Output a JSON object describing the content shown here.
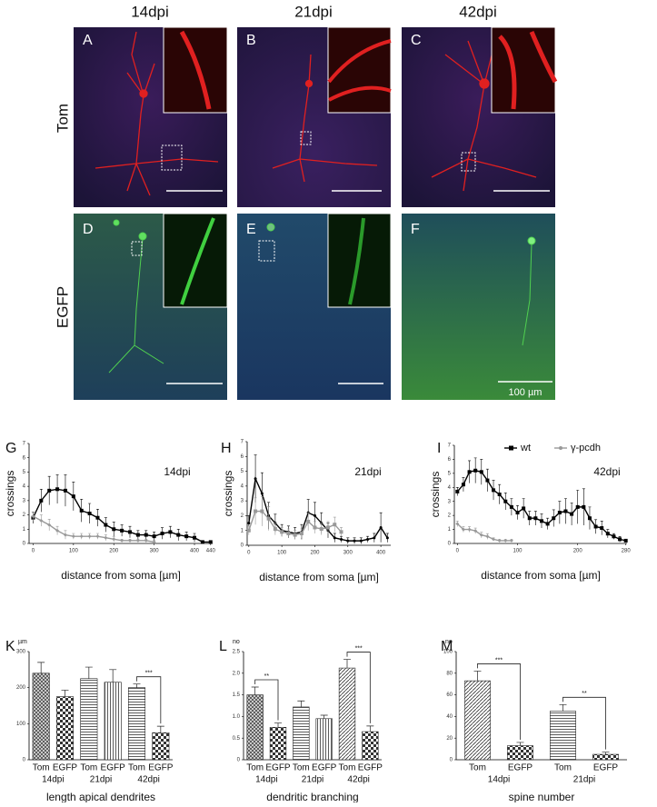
{
  "panels": {
    "columns": [
      "14dpi",
      "21dpi",
      "42dpi"
    ],
    "rows": [
      "Tom",
      "EGFP"
    ],
    "letters": [
      "A",
      "B",
      "C",
      "D",
      "E",
      "F"
    ],
    "scale_label": "100 µm"
  },
  "chart_data": [
    {
      "type": "line",
      "letter": "G",
      "annotation": "14dpi",
      "xlabel": "distance from soma [µm]",
      "ylabel": "crossings",
      "xlim": [
        -10,
        445
      ],
      "xticks": [
        0,
        100,
        200,
        300,
        400,
        440
      ],
      "ylim": [
        0,
        7
      ],
      "yticks": [
        0,
        1,
        2,
        3,
        4,
        5,
        6,
        7
      ],
      "series": [
        {
          "color": "#000000",
          "marker": "square",
          "x": [
            0,
            20,
            40,
            60,
            80,
            100,
            120,
            140,
            160,
            180,
            200,
            220,
            240,
            260,
            280,
            300,
            320,
            340,
            360,
            380,
            400,
            420,
            440
          ],
          "values": [
            1.8,
            3.0,
            3.7,
            3.8,
            3.7,
            3.3,
            2.3,
            2.1,
            1.8,
            1.3,
            1.0,
            0.9,
            0.8,
            0.6,
            0.6,
            0.5,
            0.7,
            0.8,
            0.6,
            0.5,
            0.4,
            0.1,
            0.1
          ],
          "errors": [
            0.4,
            0.8,
            1.0,
            1.0,
            1.1,
            1.0,
            0.8,
            0.7,
            0.6,
            0.5,
            0.5,
            0.4,
            0.4,
            0.3,
            0.3,
            0.3,
            0.4,
            0.4,
            0.4,
            0.3,
            0.3,
            0.1,
            0.1
          ]
        },
        {
          "color": "#999999",
          "marker": "diamond",
          "x": [
            0,
            20,
            40,
            60,
            80,
            100,
            120,
            140,
            160,
            180,
            200,
            220,
            240,
            260,
            280,
            300
          ],
          "values": [
            1.9,
            1.6,
            1.3,
            0.9,
            0.6,
            0.5,
            0.5,
            0.5,
            0.5,
            0.4,
            0.3,
            0.2,
            0.2,
            0.2,
            0.2,
            0.1
          ],
          "errors": [
            0.3,
            0.4,
            0.4,
            0.3,
            0.3,
            0.2,
            0.2,
            0.2,
            0.2,
            0.2,
            0.2,
            0.1,
            0.1,
            0.1,
            0.1,
            0.1
          ]
        }
      ]
    },
    {
      "type": "line",
      "letter": "H",
      "annotation": "21dpi",
      "xlabel": "distance from soma [µm]",
      "ylabel": "crossings",
      "xlim": [
        -5,
        430
      ],
      "xticks": [
        0,
        100,
        200,
        300,
        400
      ],
      "ylim": [
        0,
        7
      ],
      "yticks": [
        0,
        1,
        2,
        3,
        4,
        5,
        6,
        7
      ],
      "series": [
        {
          "color": "#000000",
          "marker": "dot",
          "x": [
            0,
            20,
            40,
            60,
            80,
            100,
            120,
            140,
            160,
            180,
            200,
            220,
            240,
            260,
            280,
            300,
            320,
            340,
            360,
            380,
            400,
            420
          ],
          "values": [
            1.5,
            4.5,
            3.5,
            2.0,
            1.5,
            1.0,
            0.9,
            0.8,
            0.9,
            2.2,
            2.0,
            1.5,
            1.0,
            0.5,
            0.4,
            0.3,
            0.3,
            0.3,
            0.4,
            0.5,
            1.2,
            0.5
          ],
          "errors": [
            0.5,
            1.6,
            1.4,
            0.9,
            0.6,
            0.4,
            0.4,
            0.4,
            0.5,
            0.9,
            0.9,
            0.7,
            0.5,
            0.3,
            0.2,
            0.2,
            0.2,
            0.2,
            0.2,
            0.3,
            1.0,
            0.3
          ]
        },
        {
          "color": "#999999",
          "marker": "square",
          "x": [
            0,
            20,
            40,
            60,
            80,
            100,
            120,
            140,
            160,
            180,
            200,
            220,
            240,
            260,
            280
          ],
          "values": [
            1.0,
            2.3,
            2.3,
            1.8,
            1.1,
            0.9,
            0.8,
            0.7,
            0.8,
            1.6,
            1.2,
            1.1,
            1.2,
            1.4,
            0.9
          ],
          "errors": [
            0.3,
            0.9,
            1.0,
            0.8,
            0.4,
            0.3,
            0.3,
            0.3,
            0.3,
            0.6,
            0.4,
            0.4,
            0.4,
            0.5,
            0.3
          ]
        }
      ]
    },
    {
      "type": "line",
      "letter": "I",
      "annotation": "42dpi",
      "xlabel": "distance from soma [µm]",
      "ylabel": "crossings",
      "xlim": [
        -5,
        282
      ],
      "xticks": [
        0,
        100,
        200,
        280
      ],
      "ylim": [
        0,
        7
      ],
      "yticks": [
        0,
        1,
        2,
        3,
        4,
        5,
        6,
        7
      ],
      "series": [
        {
          "name": "wt",
          "color": "#000000",
          "marker": "square",
          "x": [
            0,
            10,
            20,
            30,
            40,
            50,
            60,
            70,
            80,
            90,
            100,
            110,
            120,
            130,
            140,
            150,
            160,
            170,
            180,
            190,
            200,
            210,
            220,
            230,
            240,
            250,
            260,
            270,
            280
          ],
          "values": [
            3.7,
            4.2,
            5.1,
            5.2,
            5.1,
            4.5,
            3.8,
            3.5,
            3.0,
            2.6,
            2.2,
            2.5,
            1.8,
            1.8,
            1.6,
            1.4,
            1.8,
            2.2,
            2.3,
            2.1,
            2.6,
            2.6,
            1.8,
            1.2,
            1.1,
            0.7,
            0.5,
            0.3,
            0.2
          ],
          "errors": [
            0.3,
            0.5,
            0.8,
            0.9,
            0.9,
            0.8,
            0.7,
            0.7,
            0.6,
            0.6,
            0.5,
            0.7,
            0.5,
            0.5,
            0.5,
            0.4,
            0.6,
            0.8,
            0.9,
            0.8,
            1.2,
            1.3,
            0.8,
            0.5,
            0.5,
            0.3,
            0.2,
            0.2,
            0.1
          ]
        },
        {
          "name": "γ-pcdh",
          "color": "#999999",
          "marker": "diamond",
          "x": [
            0,
            10,
            20,
            30,
            40,
            50,
            60,
            70,
            80,
            90
          ],
          "values": [
            1.4,
            1.0,
            1.0,
            0.9,
            0.6,
            0.5,
            0.3,
            0.2,
            0.2,
            0.2
          ],
          "errors": [
            0.2,
            0.2,
            0.2,
            0.2,
            0.2,
            0.2,
            0.1,
            0.1,
            0.1,
            0.1
          ]
        }
      ]
    },
    {
      "type": "bar",
      "letter": "K",
      "unit": "µm",
      "xlabel": "length apical dendrites",
      "categories": [
        "Tom",
        "EGFP",
        "Tom",
        "EGFP",
        "Tom",
        "EGFP"
      ],
      "groups": [
        "14dpi",
        "21dpi",
        "42dpi"
      ],
      "values": [
        240,
        175,
        225,
        215,
        200,
        75
      ],
      "errors": [
        30,
        18,
        32,
        35,
        10,
        18
      ],
      "patterns": [
        "cross",
        "check",
        "hline",
        "vline",
        "hline",
        "check"
      ],
      "ylim": [
        0,
        300
      ],
      "yticks": [
        0,
        100,
        200,
        300
      ],
      "significance": [
        {
          "label": "***",
          "pair": [
            4,
            5
          ]
        }
      ]
    },
    {
      "type": "bar",
      "letter": "L",
      "unit": "no",
      "xlabel": "dendritic branching",
      "categories": [
        "Tom",
        "EGFP",
        "Tom",
        "EGFP",
        "Tom",
        "EGFP"
      ],
      "groups": [
        "14dpi",
        "21dpi",
        "42dpi"
      ],
      "values": [
        1.5,
        0.75,
        1.22,
        0.95,
        2.12,
        0.65
      ],
      "errors": [
        0.18,
        0.1,
        0.14,
        0.08,
        0.2,
        0.13
      ],
      "patterns": [
        "cross",
        "check",
        "hline",
        "vline",
        "diag",
        "check"
      ],
      "ylim": [
        0,
        2.5
      ],
      "yticks": [
        0,
        0.5,
        {
          "value": 1,
          "label": "1.0"
        },
        1.5,
        {
          "value": 2,
          "label": "2.0"
        },
        2.5
      ],
      "significance": [
        {
          "label": "**",
          "pair": [
            0,
            1
          ]
        },
        {
          "label": "***",
          "pair": [
            4,
            5
          ]
        }
      ]
    },
    {
      "type": "bar",
      "letter": "M",
      "unit": "no",
      "xlabel": "spine number",
      "categories": [
        "Tom",
        "EGFP",
        "Tom",
        "EGFP"
      ],
      "groups": [
        "14dpi",
        "21dpi"
      ],
      "values": [
        73,
        13,
        45,
        5
      ],
      "errors": [
        9,
        3,
        6,
        2
      ],
      "patterns": [
        "diag",
        "check",
        "hline",
        "check"
      ],
      "ylim": [
        0,
        100
      ],
      "yticks": [
        0,
        20,
        40,
        60,
        80,
        100
      ],
      "significance": [
        {
          "label": "***",
          "pair": [
            0,
            1
          ]
        },
        {
          "label": "**",
          "pair": [
            2,
            3
          ]
        }
      ]
    }
  ]
}
